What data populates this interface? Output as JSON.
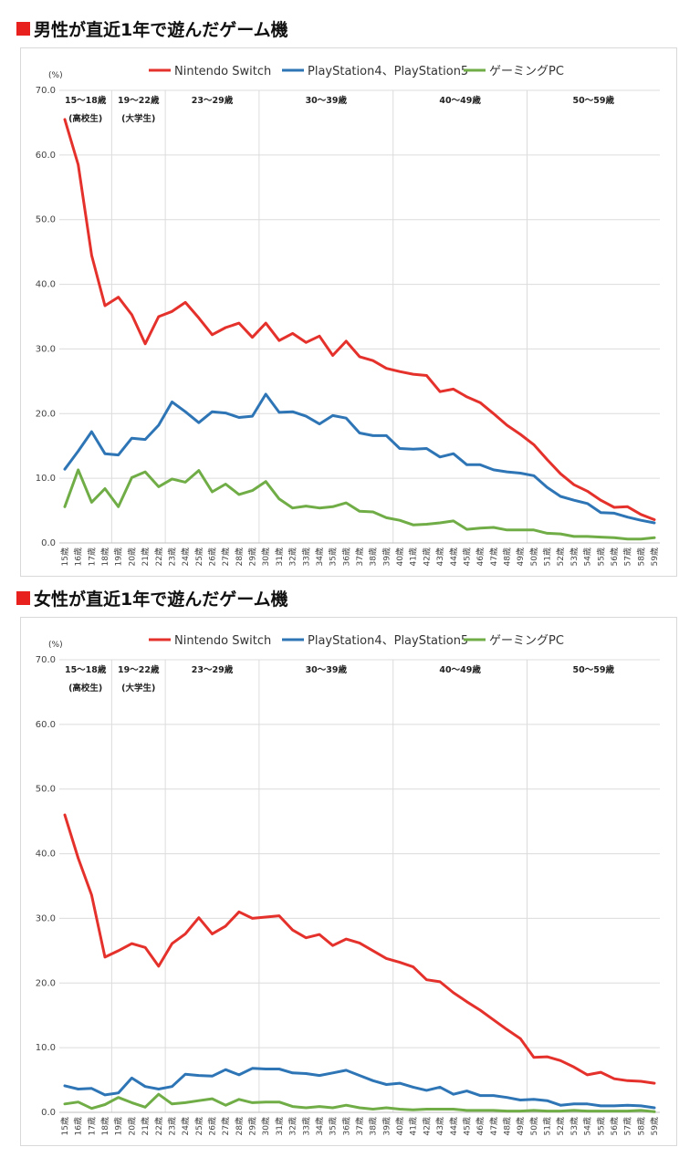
{
  "charts_meta": [
    {
      "title": "男性が直近1年で遊んだゲーム機"
    },
    {
      "title": "女性が直近1年で遊んだゲーム機"
    }
  ],
  "colors": {
    "switch": "#e5312b",
    "ps": "#2e75b6",
    "pc": "#70ad47",
    "grid": "#dcdcdc",
    "accent": "#e8211e"
  },
  "chart_data": [
    {
      "type": "line",
      "title": "男性が直近1年で遊んだゲーム機",
      "ylabel": "(%)",
      "ylim": [
        0,
        70
      ],
      "yticks": [
        "0.0",
        "10.0",
        "20.0",
        "30.0",
        "40.0",
        "50.0",
        "60.0",
        "70.0"
      ],
      "grid": true,
      "legend_position": "top",
      "categories": [
        "15歳",
        "16歳",
        "17歳",
        "18歳",
        "19歳",
        "20歳",
        "21歳",
        "22歳",
        "23歳",
        "24歳",
        "25歳",
        "26歳",
        "27歳",
        "28歳",
        "29歳",
        "30歳",
        "31歳",
        "32歳",
        "33歳",
        "34歳",
        "35歳",
        "36歳",
        "37歳",
        "38歳",
        "39歳",
        "40歳",
        "41歳",
        "42歳",
        "43歳",
        "44歳",
        "45歳",
        "46歳",
        "47歳",
        "48歳",
        "49歳",
        "50歳",
        "51歳",
        "52歳",
        "53歳",
        "54歳",
        "55歳",
        "56歳",
        "57歳",
        "58歳",
        "59歳"
      ],
      "age_groups": [
        {
          "label": "15〜18歳",
          "sub": "(高校生)",
          "from": 0
        },
        {
          "label": "19〜22歳",
          "sub": "(大学生)",
          "from": 4
        },
        {
          "label": "23〜29歳",
          "sub": "",
          "from": 8
        },
        {
          "label": "30〜39歳",
          "sub": "",
          "from": 15
        },
        {
          "label": "40〜49歳",
          "sub": "",
          "from": 25
        },
        {
          "label": "50〜59歳",
          "sub": "",
          "from": 35
        }
      ],
      "series": [
        {
          "name": "Nintendo Switch",
          "key": "switch",
          "values": [
            65.5,
            58.5,
            44.5,
            36.7,
            38.0,
            35.3,
            30.8,
            35.0,
            35.8,
            37.2,
            34.8,
            32.2,
            33.3,
            34.0,
            31.8,
            34.0,
            31.3,
            32.4,
            31.0,
            32.0,
            29.0,
            31.2,
            28.8,
            28.2,
            27.0,
            26.5,
            26.1,
            25.9,
            23.4,
            23.8,
            22.6,
            21.7,
            20.0,
            18.2,
            16.8,
            15.2,
            12.9,
            10.7,
            9.0,
            8.0,
            6.6,
            5.5,
            5.6,
            4.4,
            3.6
          ]
        },
        {
          "name": "PlayStation4、PlayStation5",
          "key": "ps",
          "values": [
            11.4,
            14.2,
            17.2,
            13.8,
            13.6,
            16.2,
            16.0,
            18.2,
            21.8,
            20.3,
            18.6,
            20.3,
            20.1,
            19.4,
            19.6,
            23.0,
            20.2,
            20.3,
            19.6,
            18.4,
            19.7,
            19.3,
            17.0,
            16.6,
            16.6,
            14.6,
            14.5,
            14.6,
            13.3,
            13.8,
            12.1,
            12.1,
            11.3,
            11.0,
            10.8,
            10.4,
            8.6,
            7.2,
            6.6,
            6.1,
            4.7,
            4.6,
            4.0,
            3.5,
            3.1
          ]
        },
        {
          "name": "ゲーミングPC",
          "key": "pc",
          "values": [
            5.6,
            11.3,
            6.3,
            8.4,
            5.6,
            10.1,
            11.0,
            8.7,
            9.9,
            9.4,
            11.2,
            7.9,
            9.1,
            7.5,
            8.1,
            9.5,
            6.8,
            5.4,
            5.7,
            5.4,
            5.6,
            6.2,
            4.9,
            4.8,
            3.9,
            3.5,
            2.8,
            2.9,
            3.1,
            3.4,
            2.1,
            2.3,
            2.4,
            2.0,
            2.0,
            2.0,
            1.5,
            1.4,
            1.0,
            1.0,
            0.9,
            0.8,
            0.6,
            0.6,
            0.8
          ]
        }
      ]
    },
    {
      "type": "line",
      "title": "女性が直近1年で遊んだゲーム機",
      "ylabel": "(%)",
      "ylim": [
        0,
        70
      ],
      "yticks": [
        "0.0",
        "10.0",
        "20.0",
        "30.0",
        "40.0",
        "50.0",
        "60.0",
        "70.0"
      ],
      "grid": true,
      "legend_position": "top",
      "categories": [
        "15歳",
        "16歳",
        "17歳",
        "18歳",
        "19歳",
        "20歳",
        "21歳",
        "22歳",
        "23歳",
        "24歳",
        "25歳",
        "26歳",
        "27歳",
        "28歳",
        "29歳",
        "30歳",
        "31歳",
        "32歳",
        "33歳",
        "34歳",
        "35歳",
        "36歳",
        "37歳",
        "38歳",
        "39歳",
        "40歳",
        "41歳",
        "42歳",
        "43歳",
        "44歳",
        "45歳",
        "46歳",
        "47歳",
        "48歳",
        "49歳",
        "50歳",
        "51歳",
        "52歳",
        "53歳",
        "54歳",
        "55歳",
        "56歳",
        "57歳",
        "58歳",
        "59歳"
      ],
      "age_groups": [
        {
          "label": "15〜18歳",
          "sub": "(高校生)",
          "from": 0
        },
        {
          "label": "19〜22歳",
          "sub": "(大学生)",
          "from": 4
        },
        {
          "label": "23〜29歳",
          "sub": "",
          "from": 8
        },
        {
          "label": "30〜39歳",
          "sub": "",
          "from": 15
        },
        {
          "label": "40〜49歳",
          "sub": "",
          "from": 25
        },
        {
          "label": "50〜59歳",
          "sub": "",
          "from": 35
        }
      ],
      "series": [
        {
          "name": "Nintendo Switch",
          "key": "switch",
          "values": [
            46.0,
            39.3,
            33.6,
            24.0,
            25.0,
            26.1,
            25.5,
            22.6,
            26.1,
            27.6,
            30.1,
            27.6,
            28.8,
            31.0,
            30.0,
            30.2,
            30.4,
            28.2,
            27.0,
            27.5,
            25.8,
            26.8,
            26.2,
            25.0,
            23.8,
            23.2,
            22.5,
            20.5,
            20.2,
            18.5,
            17.1,
            15.8,
            14.3,
            12.8,
            11.4,
            8.5,
            8.6,
            8.0,
            7.0,
            5.8,
            6.2,
            5.2,
            4.9,
            4.8,
            4.5
          ]
        },
        {
          "name": "PlayStation4、PlayStation5",
          "key": "ps",
          "values": [
            4.1,
            3.6,
            3.7,
            2.7,
            3.0,
            5.3,
            4.0,
            3.6,
            4.0,
            5.9,
            5.7,
            5.6,
            6.6,
            5.8,
            6.8,
            6.7,
            6.7,
            6.1,
            6.0,
            5.7,
            6.1,
            6.5,
            5.7,
            4.9,
            4.3,
            4.5,
            3.9,
            3.4,
            3.9,
            2.8,
            3.3,
            2.6,
            2.6,
            2.3,
            1.9,
            2.0,
            1.8,
            1.1,
            1.3,
            1.3,
            1.0,
            1.0,
            1.1,
            1.0,
            0.7
          ]
        },
        {
          "name": "ゲーミングPC",
          "key": "pc",
          "values": [
            1.3,
            1.6,
            0.6,
            1.2,
            2.3,
            1.5,
            0.8,
            2.8,
            1.3,
            1.5,
            1.8,
            2.1,
            1.1,
            2.0,
            1.5,
            1.6,
            1.6,
            0.9,
            0.7,
            0.9,
            0.7,
            1.1,
            0.7,
            0.5,
            0.7,
            0.5,
            0.4,
            0.5,
            0.5,
            0.5,
            0.3,
            0.3,
            0.3,
            0.2,
            0.2,
            0.3,
            0.2,
            0.2,
            0.3,
            0.2,
            0.2,
            0.2,
            0.2,
            0.3,
            0.1
          ]
        }
      ]
    }
  ]
}
